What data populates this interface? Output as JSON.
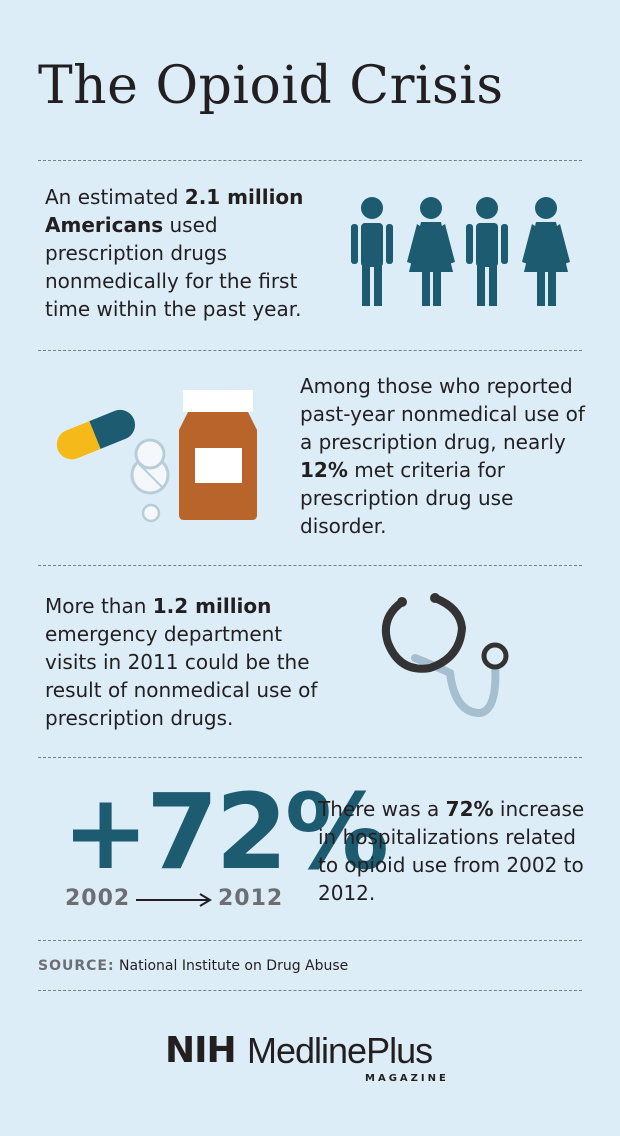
{
  "title": "The Opioid Crisis",
  "sections": [
    {
      "before": "An estimated ",
      "highlight": "2.1 million Americans",
      "after": " used prescription drugs nonmedically for the first time within the past year."
    },
    {
      "before": "Among those who reported past-year nonmedical use of a prescription drug, nearly ",
      "highlight": "12%",
      "after": " met criteria for prescription drug use disorder."
    },
    {
      "before": "More than ",
      "highlight": "1.2 million",
      "after": " emergency department visits in 2011 could be the result of nonmedical use of prescription drugs."
    },
    {
      "stat": "+72%",
      "from": "2002",
      "to": "2012",
      "before": "There was a ",
      "highlight": "72%",
      "after": " increase in hospitalizations related to opioid use from 2002 to 2012."
    }
  ],
  "source": {
    "label": "SOURCE:",
    "text": "National Institute on Drug Abuse"
  },
  "logo": {
    "nih": "NIH",
    "name": "MedlinePlus",
    "sub": "MAGAZINE"
  }
}
